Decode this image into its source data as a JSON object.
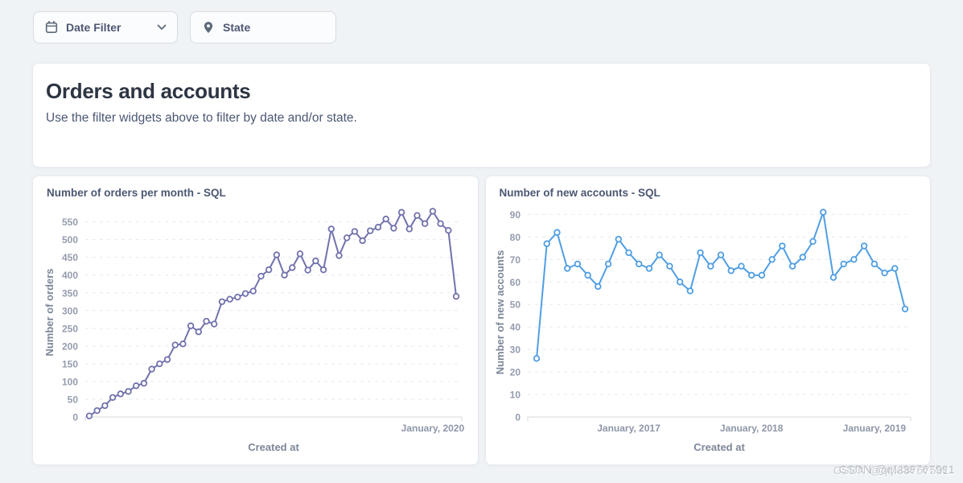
{
  "filter_bar": {
    "date_filter": {
      "label": "Date Filter",
      "icon": "calendar-icon"
    },
    "state_filter": {
      "label": "State",
      "icon": "location-pin-icon"
    }
  },
  "header_card": {
    "title": "Orders and accounts",
    "subtitle": "Use the filter widgets above to filter by date and/or state."
  },
  "watermark": {
    "text": "CSDN @qM38767591"
  },
  "colors": {
    "orders_line": "#7172AD",
    "accounts_line": "#509EE3",
    "tick_text": "#959cae",
    "card_background": "#ffffff",
    "page_background": "#f0f3f6"
  },
  "chart_data": [
    {
      "type": "line",
      "title": "Number of orders per month - SQL",
      "xlabel": "Created at",
      "ylabel": "Number of orders",
      "color": "#7172AD",
      "marker": "open-circle",
      "grid": "horizontal-dashed",
      "legend": "none",
      "ylim": [
        0,
        590
      ],
      "yticks": [
        0,
        50,
        100,
        150,
        200,
        250,
        300,
        350,
        400,
        450,
        500,
        550
      ],
      "x_ticks": [
        {
          "label": "January, 2020",
          "index": 44
        }
      ],
      "values": [
        3,
        18,
        32,
        55,
        65,
        72,
        88,
        95,
        135,
        150,
        162,
        203,
        206,
        257,
        240,
        270,
        262,
        325,
        332,
        338,
        348,
        355,
        397,
        415,
        457,
        400,
        421,
        460,
        414,
        440,
        415,
        530,
        455,
        505,
        523,
        497,
        525,
        535,
        558,
        532,
        577,
        530,
        568,
        545,
        580,
        545,
        526,
        340
      ]
    },
    {
      "type": "line",
      "title": "Number of new accounts - SQL",
      "xlabel": "Created at",
      "ylabel": "Number of new accounts",
      "color": "#509EE3",
      "marker": "open-circle",
      "grid": "horizontal-dashed",
      "legend": "none",
      "ylim": [
        0,
        93
      ],
      "yticks": [
        0,
        10,
        20,
        30,
        40,
        50,
        60,
        70,
        80,
        90
      ],
      "x_ticks": [
        {
          "label": "January, 2017",
          "index": 9
        },
        {
          "label": "January, 2018",
          "index": 21
        },
        {
          "label": "January, 2019",
          "index": 33
        }
      ],
      "values": [
        26,
        77,
        82,
        66,
        68,
        63,
        58,
        68,
        79,
        73,
        68,
        66,
        72,
        67,
        60,
        56,
        73,
        67,
        72,
        65,
        67,
        63,
        63,
        70,
        76,
        67,
        71,
        78,
        91,
        62,
        68,
        70,
        76,
        68,
        64,
        66,
        48
      ]
    }
  ]
}
